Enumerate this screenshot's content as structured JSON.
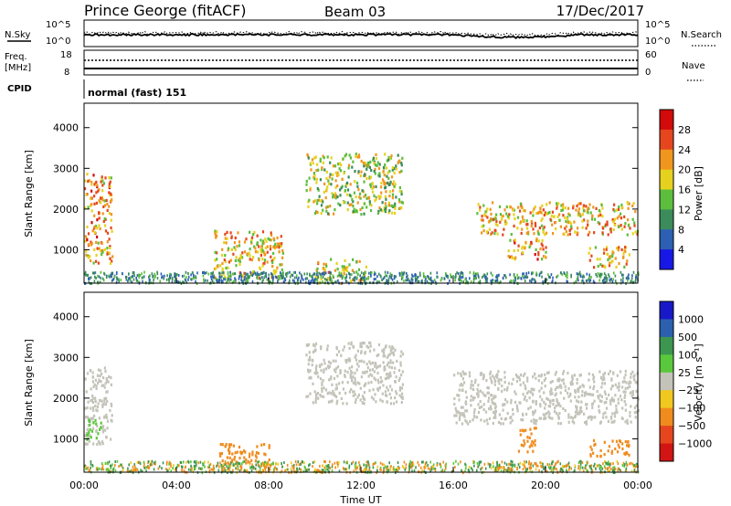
{
  "header": {
    "title": "Prince George (fitACF)",
    "beam": "Beam 03",
    "date": "17/Dec/2017"
  },
  "noise_panel": {
    "left_label": "N.Sky",
    "left_ticks": [
      "10^5",
      "10^0"
    ],
    "right_label": "N.Search",
    "right_ticks": [
      "10^5",
      "10^0"
    ]
  },
  "freq_panel": {
    "left_label_1": "Freq.",
    "left_label_2": "[MHz]",
    "left_ticks": [
      "18",
      "8"
    ],
    "right_label": "Nave",
    "right_ticks": [
      "60",
      "0"
    ]
  },
  "cpid": {
    "label": "CPID",
    "value": "normal (fast) 151"
  },
  "axes": {
    "ylabel": "Slant Range [km]",
    "yticks": [
      "1000",
      "2000",
      "3000",
      "4000"
    ],
    "xticks": [
      "00:00",
      "04:00",
      "08:00",
      "12:00",
      "16:00",
      "20:00",
      "00:00"
    ],
    "xlabel": "Time UT"
  },
  "power_scale": {
    "label": "Power [dB]",
    "ticks": [
      "4",
      "8",
      "12",
      "16",
      "20",
      "24",
      "28"
    ],
    "colors": [
      "#1818e6",
      "#2d5fb3",
      "#3b8c5a",
      "#5cbe3c",
      "#e6d21e",
      "#f0961e",
      "#e6461e",
      "#d20a0a"
    ]
  },
  "velocity_scale": {
    "label": "Velocity [m s⁻¹]",
    "ticks": [
      "1000",
      "500",
      "100",
      "25",
      "−25",
      "−100",
      "−500",
      "−1000"
    ],
    "colors": [
      "#1818c8",
      "#2d5faf",
      "#3c9650",
      "#5ac83c",
      "#c3c3b9",
      "#f0c81e",
      "#f08c1e",
      "#e6461e",
      "#d21414"
    ]
  },
  "chart_data": [
    {
      "type": "heatmap",
      "title": "Power",
      "xlabel": "Time UT",
      "ylabel": "Slant Range [km]",
      "xlim": [
        "00:00",
        "24:00"
      ],
      "ylim": [
        180,
        4600
      ],
      "color_label": "Power [dB]",
      "color_range": [
        0,
        32
      ],
      "regions": [
        {
          "t0": 0.0,
          "t1": 1.2,
          "r0": 700,
          "r1": 2900,
          "level": 22
        },
        {
          "t0": 5.6,
          "t1": 8.6,
          "r0": 300,
          "r1": 1500,
          "level": 20
        },
        {
          "t0": 9.6,
          "t1": 13.8,
          "r0": 1900,
          "r1": 3400,
          "level": 16
        },
        {
          "t0": 10.0,
          "t1": 12.2,
          "r0": 200,
          "r1": 800,
          "level": 18
        },
        {
          "t0": 17.0,
          "t1": 24.0,
          "r0": 1400,
          "r1": 2200,
          "level": 20
        },
        {
          "t0": 18.3,
          "t1": 20.0,
          "r0": 800,
          "r1": 1300,
          "level": 22
        },
        {
          "t0": 21.8,
          "t1": 23.6,
          "r0": 600,
          "r1": 1100,
          "level": 20
        }
      ]
    },
    {
      "type": "heatmap",
      "title": "Velocity",
      "xlabel": "Time UT",
      "ylabel": "Slant Range [km]",
      "xlim": [
        "00:00",
        "24:00"
      ],
      "ylim": [
        180,
        4600
      ],
      "color_label": "Velocity [m s⁻¹]",
      "color_range": [
        -1000,
        1000
      ],
      "regions": [
        {
          "t0": 0.0,
          "t1": 1.2,
          "r0": 900,
          "r1": 2800,
          "level": 0
        },
        {
          "t0": 0.0,
          "t1": 0.7,
          "r0": 1000,
          "r1": 1500,
          "level": 80
        },
        {
          "t0": 5.8,
          "t1": 8.0,
          "r0": 300,
          "r1": 900,
          "level": -300
        },
        {
          "t0": 9.6,
          "t1": 13.8,
          "r0": 1900,
          "r1": 3400,
          "level": 0
        },
        {
          "t0": 16.0,
          "t1": 24.0,
          "r0": 1400,
          "r1": 2700,
          "level": 0
        },
        {
          "t0": 18.8,
          "t1": 19.6,
          "r0": 700,
          "r1": 1300,
          "level": -300
        },
        {
          "t0": 21.8,
          "t1": 23.6,
          "r0": 600,
          "r1": 1000,
          "level": -200
        }
      ]
    }
  ]
}
